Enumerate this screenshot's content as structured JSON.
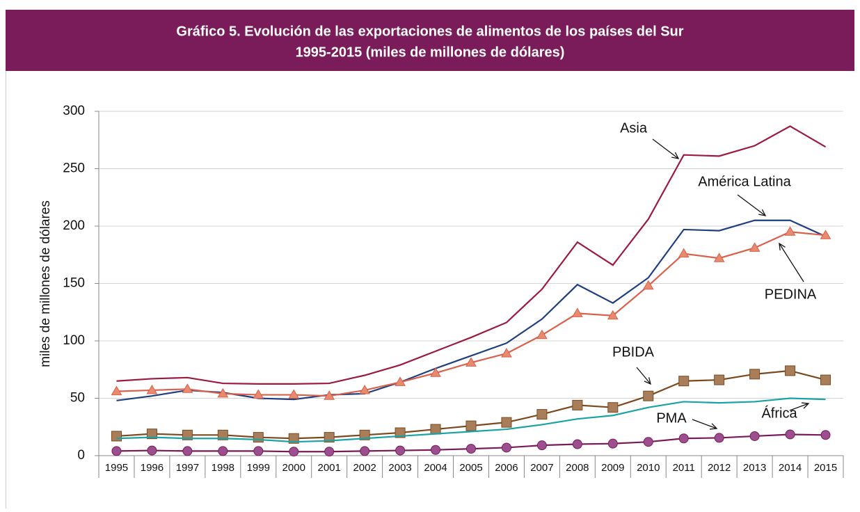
{
  "chart_data": {
    "type": "line",
    "title": [
      "Gráfico 5. Evolución de las exportaciones de alimentos de los países del Sur",
      "1995-2015 (miles de millones de dólares)"
    ],
    "y_label": "miles de millones de dólares",
    "categories": [
      "1995",
      "1996",
      "1997",
      "1998",
      "1999",
      "2000",
      "2001",
      "2002",
      "2003",
      "2004",
      "2005",
      "2006",
      "2007",
      "2008",
      "2009",
      "2010",
      "2011",
      "2012",
      "2013",
      "2014",
      "2015"
    ],
    "ylim": [
      0,
      300
    ],
    "yticks": [
      0,
      50,
      100,
      150,
      200,
      250,
      300
    ],
    "grid": true,
    "series": [
      {
        "name": "Asia",
        "color": "#9b1b3f",
        "marker": "none",
        "values": [
          65,
          67,
          68,
          63,
          62.5,
          62.5,
          63,
          70,
          79,
          91,
          103,
          116,
          145,
          186,
          166,
          206,
          262,
          261,
          270,
          287,
          269
        ]
      },
      {
        "name": "América Latina",
        "color": "#1f3f7f",
        "marker": "none",
        "values": [
          48,
          52,
          57,
          55,
          50,
          49,
          53,
          54,
          64,
          76,
          87,
          98,
          119,
          149,
          133,
          155,
          197,
          196,
          205,
          205,
          191
        ]
      },
      {
        "name": "PEDINA",
        "color": "#d9604a",
        "marker": "triangle",
        "marker_color": "#e88a6e",
        "values": [
          56,
          57,
          58,
          54,
          53,
          53,
          52,
          57,
          64,
          72,
          81,
          89,
          105,
          124,
          122,
          148,
          176,
          172,
          181,
          195,
          192
        ]
      },
      {
        "name": "PBIDA",
        "color": "#7b4a1f",
        "marker": "square",
        "marker_color": "#a87d5a",
        "values": [
          17,
          19,
          18,
          18,
          16,
          15,
          16,
          18,
          20,
          23,
          26,
          29,
          36,
          44,
          42,
          52,
          65,
          66,
          71,
          74,
          66
        ]
      },
      {
        "name": "África",
        "color": "#1aa3a3",
        "marker": "none",
        "values": [
          15,
          16,
          15,
          15,
          14,
          12,
          13,
          15,
          17,
          19,
          21,
          23,
          27,
          32,
          35,
          42,
          47,
          46,
          47,
          50,
          49
        ]
      },
      {
        "name": "PMA",
        "color": "#7b1a5a",
        "marker": "circle",
        "marker_color": "#9b4f8f",
        "values": [
          4,
          4.5,
          4,
          4,
          4,
          3.5,
          3.5,
          4,
          4.5,
          5,
          6,
          7,
          9,
          10,
          10.5,
          12,
          15,
          15.5,
          17,
          18.5,
          18
        ]
      }
    ]
  }
}
